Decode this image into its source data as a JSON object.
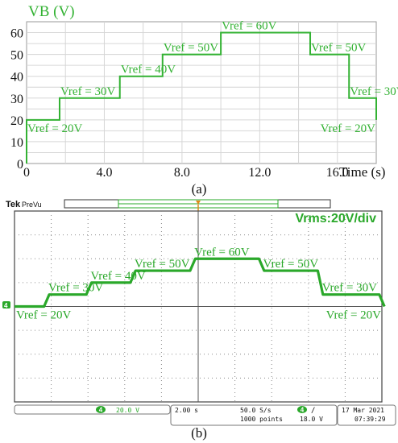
{
  "chart_data": [
    {
      "type": "line",
      "title": "",
      "ylabel": "VB (V)",
      "xlabel": "Time (s)",
      "xlim": [
        0,
        18
      ],
      "ylim": [
        0,
        65
      ],
      "xticks": [
        "0",
        "4.0",
        "8.0",
        "12.0",
        "16.0"
      ],
      "yticks": [
        "0",
        "10",
        "20",
        "30",
        "40",
        "50",
        "60"
      ],
      "grid": true,
      "color": "#33b233",
      "step_edges": [
        0,
        1.7,
        4.8,
        7.0,
        10.0,
        14.6,
        16.6,
        18.0
      ],
      "levels": [
        20,
        30,
        40,
        50,
        60,
        50,
        30,
        20
      ],
      "annotations": [
        "Vref = 20V",
        "Vref = 30V",
        "Vref = 40V",
        "Vref = 50V",
        "Vref = 60V",
        "Vref = 50V",
        "Vref = 30V",
        "Vref = 20V"
      ],
      "caption": "(a)"
    },
    {
      "type": "line",
      "title": "",
      "scale_label": "Vrms:20V/div",
      "color": "#2aa82a",
      "time_window_s": 20,
      "divisions": 10,
      "step_edges": [
        0,
        1.75,
        4.05,
        6.45,
        9.7,
        11.35,
        13.45,
        16.65,
        20.0
      ],
      "levels": [
        20,
        30,
        40,
        50,
        60,
        60,
        50,
        30,
        20
      ],
      "annotations": [
        "Vref = 20V",
        "Vref = 30V",
        "Vref = 40V",
        "Vref = 50V",
        "Vref = 60V",
        "Vref = 50V",
        "Vref = 30V",
        "Vref = 20V"
      ],
      "brand": "Tek",
      "mode": "PreVu",
      "channel": "4",
      "status": {
        "ch_scale": "20.0 V",
        "timebase": "2.00 s",
        "sample_rate": "50.0 S/s",
        "points": "1000 points",
        "trigger_level": "18.0 V",
        "trigger_slope": "∕",
        "date": "17 Mar 2021",
        "time": "07:39:29"
      },
      "caption": "(b)"
    }
  ]
}
